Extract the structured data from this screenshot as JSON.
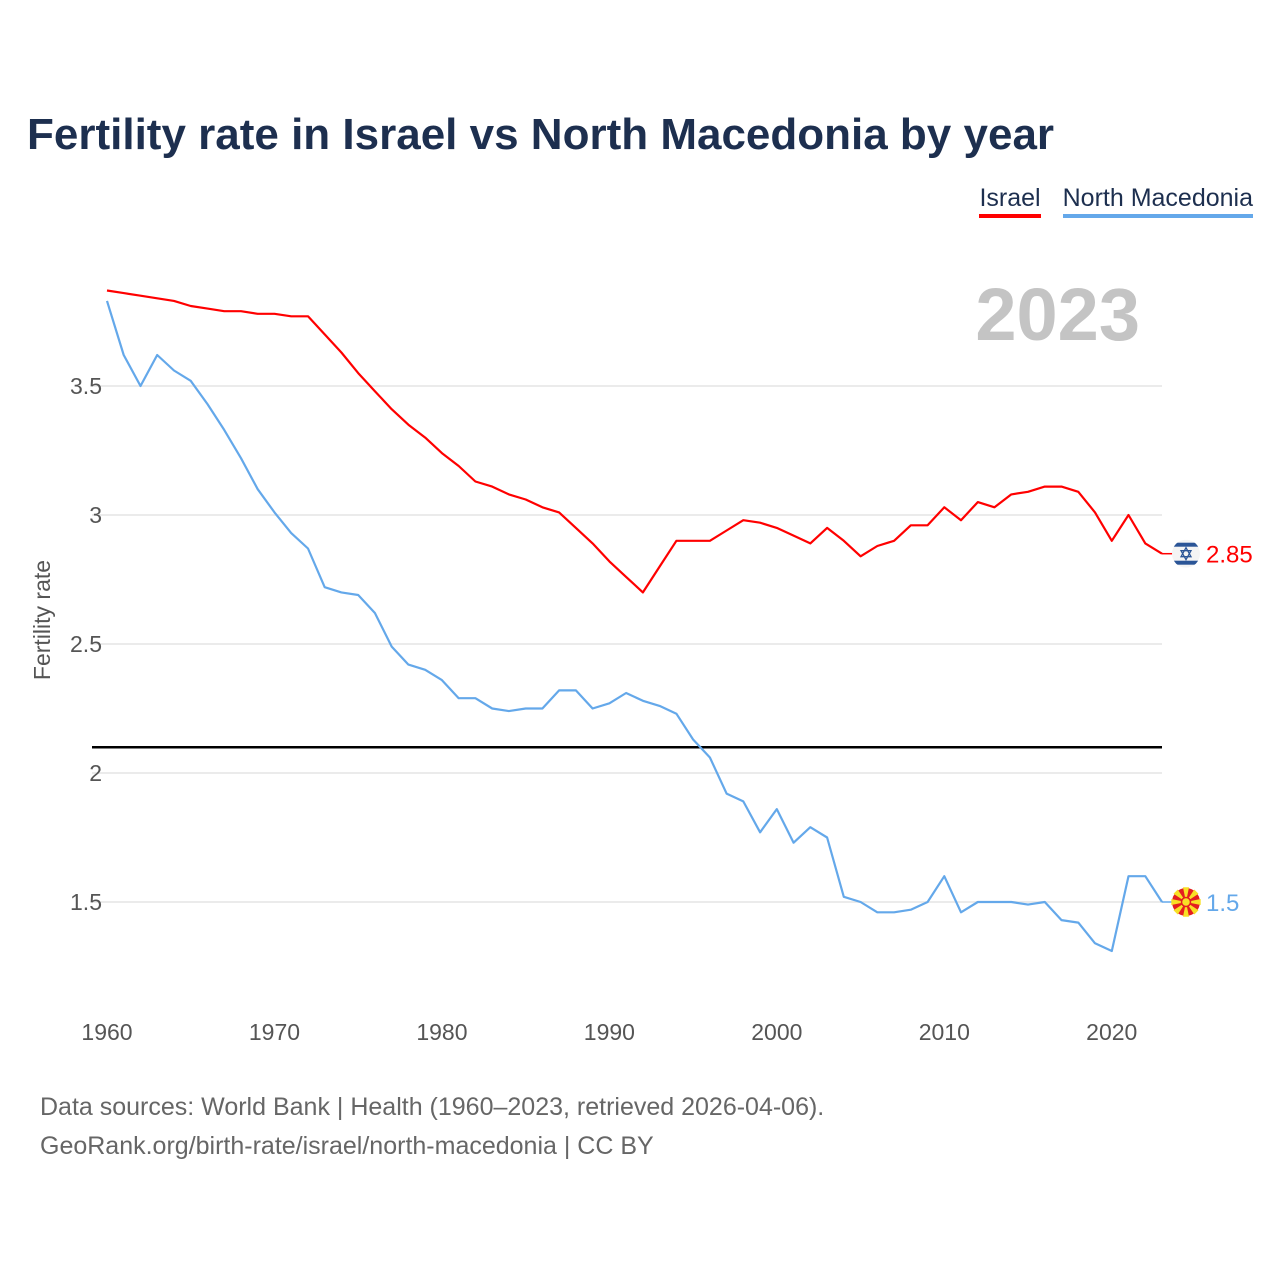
{
  "title": "Fertility rate in Israel vs North Macedonia by year",
  "footer": {
    "line1": "Data sources: World Bank | Health (1960–2023, retrieved 2026-04-06).",
    "line2": "GeoRank.org/birth-rate/israel/north-macedonia | CC BY"
  },
  "chart_data": {
    "type": "line",
    "title": "Fertility rate in Israel vs North Macedonia by year",
    "xlabel": "",
    "ylabel": "Fertility rate",
    "year_label": "2023",
    "xlim": [
      1960,
      2023
    ],
    "ylim": [
      1.1,
      3.95
    ],
    "xticks": [
      "1960",
      "1970",
      "1980",
      "1990",
      "2000",
      "2010",
      "2020"
    ],
    "yticks": [
      "1.5",
      "2",
      "2.5",
      "3",
      "3.5"
    ],
    "reference_line": 2.1,
    "grid": true,
    "legend_position": "top-right",
    "x": [
      1960,
      1961,
      1962,
      1963,
      1964,
      1965,
      1966,
      1967,
      1968,
      1969,
      1970,
      1971,
      1972,
      1973,
      1974,
      1975,
      1976,
      1977,
      1978,
      1979,
      1980,
      1981,
      1982,
      1983,
      1984,
      1985,
      1986,
      1987,
      1988,
      1989,
      1990,
      1991,
      1992,
      1993,
      1994,
      1995,
      1996,
      1997,
      1998,
      1999,
      2000,
      2001,
      2002,
      2003,
      2004,
      2005,
      2006,
      2007,
      2008,
      2009,
      2010,
      2011,
      2012,
      2013,
      2014,
      2015,
      2016,
      2017,
      2018,
      2019,
      2020,
      2021,
      2022,
      2023
    ],
    "series": [
      {
        "name": "Israel",
        "color": "#ff0000",
        "end_label": "2.85",
        "flag": "israel-flag",
        "values": [
          3.87,
          3.86,
          3.85,
          3.84,
          3.83,
          3.81,
          3.8,
          3.79,
          3.79,
          3.78,
          3.78,
          3.77,
          3.77,
          3.7,
          3.63,
          3.55,
          3.48,
          3.41,
          3.35,
          3.3,
          3.24,
          3.19,
          3.13,
          3.11,
          3.08,
          3.06,
          3.03,
          3.01,
          2.95,
          2.89,
          2.82,
          2.76,
          2.7,
          2.8,
          2.9,
          2.9,
          2.9,
          2.94,
          2.98,
          2.97,
          2.95,
          2.92,
          2.89,
          2.95,
          2.9,
          2.84,
          2.88,
          2.9,
          2.96,
          2.96,
          3.03,
          2.98,
          3.05,
          3.03,
          3.08,
          3.09,
          3.11,
          3.11,
          3.09,
          3.01,
          2.9,
          3.0,
          2.89,
          2.85
        ]
      },
      {
        "name": "North Macedonia",
        "color": "#64a8ea",
        "end_label": "1.5",
        "flag": "north-macedonia-flag",
        "values": [
          3.83,
          3.62,
          3.5,
          3.62,
          3.56,
          3.52,
          3.43,
          3.33,
          3.22,
          3.1,
          3.01,
          2.93,
          2.87,
          2.72,
          2.7,
          2.69,
          2.62,
          2.49,
          2.42,
          2.4,
          2.36,
          2.29,
          2.29,
          2.25,
          2.24,
          2.25,
          2.25,
          2.32,
          2.32,
          2.25,
          2.27,
          2.31,
          2.28,
          2.26,
          2.23,
          2.13,
          2.06,
          1.92,
          1.89,
          1.77,
          1.86,
          1.73,
          1.79,
          1.75,
          1.52,
          1.5,
          1.46,
          1.46,
          1.47,
          1.5,
          1.6,
          1.46,
          1.5,
          1.5,
          1.5,
          1.49,
          1.5,
          1.43,
          1.42,
          1.34,
          1.31,
          1.6,
          1.6,
          1.5
        ]
      }
    ]
  }
}
